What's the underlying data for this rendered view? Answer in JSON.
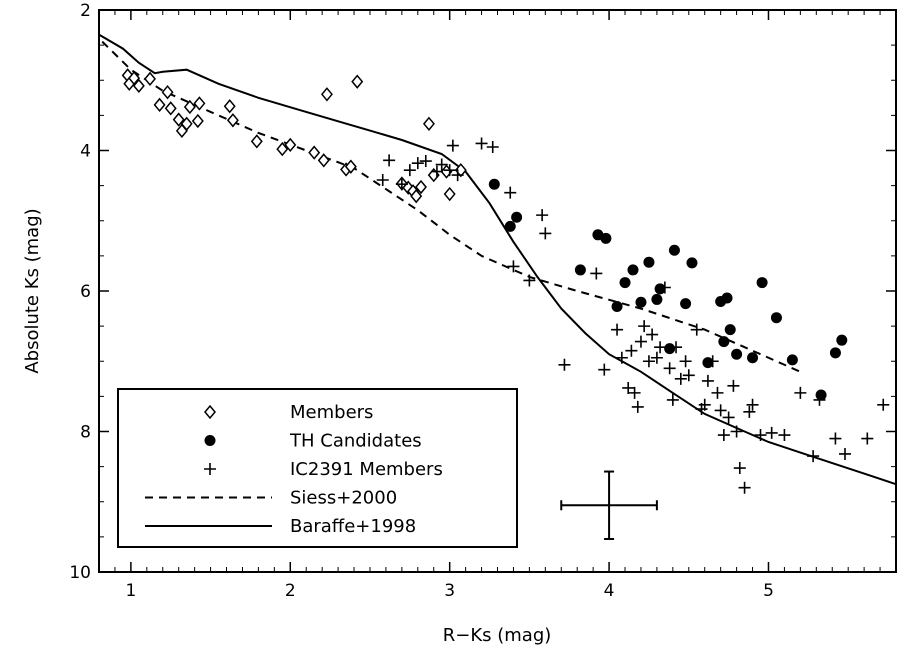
{
  "chart_data": {
    "type": "scatter",
    "title": "",
    "xlabel": "R−Ks (mag)",
    "ylabel": "Absolute Ks (mag)",
    "xlim": [
      0.8,
      5.8
    ],
    "ylim": [
      10,
      2
    ],
    "y_inverted": true,
    "xticks": [
      1,
      2,
      3,
      4,
      5
    ],
    "xtick_labels": [
      "1",
      "2",
      "3",
      "4",
      "5"
    ],
    "yticks": [
      2,
      4,
      6,
      8,
      10
    ],
    "ytick_labels": [
      "2",
      "4",
      "6",
      "8",
      "10"
    ],
    "grid": false,
    "legend_position": "bottom-left",
    "series": [
      {
        "name": "Members",
        "kind": "scatter",
        "marker": "open-diamond",
        "points": [
          [
            0.98,
            2.93
          ],
          [
            0.99,
            3.05
          ],
          [
            1.02,
            2.97
          ],
          [
            1.05,
            3.08
          ],
          [
            1.12,
            2.98
          ],
          [
            1.18,
            3.35
          ],
          [
            1.23,
            3.17
          ],
          [
            1.25,
            3.4
          ],
          [
            1.3,
            3.56
          ],
          [
            1.32,
            3.72
          ],
          [
            1.35,
            3.62
          ],
          [
            1.37,
            3.38
          ],
          [
            1.42,
            3.58
          ],
          [
            1.43,
            3.33
          ],
          [
            1.62,
            3.37
          ],
          [
            1.64,
            3.57
          ],
          [
            1.79,
            3.87
          ],
          [
            1.95,
            3.98
          ],
          [
            2.0,
            3.92
          ],
          [
            2.15,
            4.03
          ],
          [
            2.21,
            4.14
          ],
          [
            2.23,
            3.2
          ],
          [
            2.35,
            4.27
          ],
          [
            2.38,
            4.23
          ],
          [
            2.42,
            3.02
          ],
          [
            2.7,
            4.47
          ],
          [
            2.74,
            4.53
          ],
          [
            2.77,
            4.58
          ],
          [
            2.79,
            4.65
          ],
          [
            2.82,
            4.52
          ],
          [
            2.87,
            3.62
          ],
          [
            2.9,
            4.35
          ],
          [
            2.98,
            4.3
          ],
          [
            3.0,
            4.62
          ],
          [
            3.07,
            4.28
          ]
        ]
      },
      {
        "name": "TH Candidates",
        "kind": "scatter",
        "marker": "filled-circle",
        "points": [
          [
            3.28,
            4.48
          ],
          [
            3.38,
            5.08
          ],
          [
            3.42,
            4.95
          ],
          [
            3.82,
            5.7
          ],
          [
            3.93,
            5.2
          ],
          [
            3.98,
            5.25
          ],
          [
            4.05,
            6.22
          ],
          [
            4.1,
            5.88
          ],
          [
            4.15,
            5.7
          ],
          [
            4.2,
            6.16
          ],
          [
            4.25,
            5.59
          ],
          [
            4.3,
            6.12
          ],
          [
            4.32,
            5.97
          ],
          [
            4.38,
            6.82
          ],
          [
            4.41,
            5.42
          ],
          [
            4.48,
            6.18
          ],
          [
            4.52,
            5.6
          ],
          [
            4.62,
            7.02
          ],
          [
            4.7,
            6.15
          ],
          [
            4.72,
            6.72
          ],
          [
            4.74,
            6.1
          ],
          [
            4.76,
            6.55
          ],
          [
            4.8,
            6.9
          ],
          [
            4.9,
            6.95
          ],
          [
            4.96,
            5.88
          ],
          [
            5.05,
            6.38
          ],
          [
            5.15,
            6.98
          ],
          [
            5.33,
            7.48
          ],
          [
            5.42,
            6.88
          ],
          [
            5.46,
            6.7
          ]
        ]
      },
      {
        "name": "IC2391 Members",
        "kind": "scatter",
        "marker": "plus",
        "points": [
          [
            2.58,
            4.42
          ],
          [
            2.62,
            4.14
          ],
          [
            2.7,
            4.48
          ],
          [
            2.75,
            4.28
          ],
          [
            2.8,
            4.18
          ],
          [
            2.85,
            4.15
          ],
          [
            2.92,
            4.3
          ],
          [
            2.95,
            4.2
          ],
          [
            3.0,
            4.28
          ],
          [
            3.02,
            3.93
          ],
          [
            3.05,
            4.35
          ],
          [
            3.2,
            3.9
          ],
          [
            3.27,
            3.95
          ],
          [
            3.38,
            4.6
          ],
          [
            3.4,
            5.65
          ],
          [
            3.5,
            5.85
          ],
          [
            3.58,
            4.92
          ],
          [
            3.6,
            5.18
          ],
          [
            3.72,
            7.05
          ],
          [
            3.92,
            5.75
          ],
          [
            3.97,
            7.12
          ],
          [
            4.05,
            6.55
          ],
          [
            4.08,
            6.95
          ],
          [
            4.12,
            7.38
          ],
          [
            4.14,
            6.85
          ],
          [
            4.16,
            7.45
          ],
          [
            4.18,
            7.65
          ],
          [
            4.2,
            6.72
          ],
          [
            4.22,
            6.5
          ],
          [
            4.25,
            7.0
          ],
          [
            4.27,
            6.62
          ],
          [
            4.3,
            6.95
          ],
          [
            4.32,
            6.8
          ],
          [
            4.35,
            5.95
          ],
          [
            4.38,
            7.1
          ],
          [
            4.4,
            7.55
          ],
          [
            4.42,
            6.8
          ],
          [
            4.45,
            7.25
          ],
          [
            4.48,
            7.0
          ],
          [
            4.5,
            7.2
          ],
          [
            4.55,
            6.55
          ],
          [
            4.58,
            7.68
          ],
          [
            4.6,
            7.62
          ],
          [
            4.62,
            7.28
          ],
          [
            4.65,
            7.0
          ],
          [
            4.68,
            7.45
          ],
          [
            4.7,
            7.7
          ],
          [
            4.72,
            8.05
          ],
          [
            4.75,
            7.8
          ],
          [
            4.78,
            7.35
          ],
          [
            4.8,
            8.0
          ],
          [
            4.82,
            8.52
          ],
          [
            4.85,
            8.8
          ],
          [
            4.88,
            7.72
          ],
          [
            4.9,
            7.62
          ],
          [
            4.95,
            8.05
          ],
          [
            5.02,
            8.02
          ],
          [
            5.1,
            8.05
          ],
          [
            5.2,
            7.45
          ],
          [
            5.28,
            8.35
          ],
          [
            5.32,
            7.55
          ],
          [
            5.42,
            8.1
          ],
          [
            5.48,
            8.32
          ],
          [
            5.62,
            8.1
          ],
          [
            5.72,
            7.62
          ]
        ]
      },
      {
        "name": "Siess+2000",
        "kind": "line",
        "style": "dashed",
        "points": [
          [
            0.82,
            2.45
          ],
          [
            1.0,
            2.85
          ],
          [
            1.2,
            3.15
          ],
          [
            1.5,
            3.45
          ],
          [
            1.8,
            3.75
          ],
          [
            2.1,
            4.0
          ],
          [
            2.4,
            4.25
          ],
          [
            2.6,
            4.55
          ],
          [
            2.8,
            4.85
          ],
          [
            3.0,
            5.2
          ],
          [
            3.2,
            5.5
          ],
          [
            3.5,
            5.8
          ],
          [
            3.8,
            6.0
          ],
          [
            4.2,
            6.25
          ],
          [
            4.6,
            6.55
          ],
          [
            4.9,
            6.85
          ],
          [
            5.2,
            7.15
          ]
        ]
      },
      {
        "name": "Baraffe+1998",
        "kind": "line",
        "style": "solid",
        "points": [
          [
            0.8,
            2.35
          ],
          [
            0.95,
            2.55
          ],
          [
            1.05,
            2.75
          ],
          [
            1.15,
            2.9
          ],
          [
            1.2,
            2.88
          ],
          [
            1.35,
            2.85
          ],
          [
            1.55,
            3.05
          ],
          [
            1.8,
            3.25
          ],
          [
            2.1,
            3.45
          ],
          [
            2.4,
            3.65
          ],
          [
            2.7,
            3.85
          ],
          [
            2.95,
            4.05
          ],
          [
            3.1,
            4.3
          ],
          [
            3.25,
            4.75
          ],
          [
            3.4,
            5.3
          ],
          [
            3.55,
            5.8
          ],
          [
            3.7,
            6.25
          ],
          [
            3.85,
            6.6
          ],
          [
            4.0,
            6.9
          ],
          [
            4.2,
            7.15
          ],
          [
            4.4,
            7.45
          ],
          [
            4.6,
            7.75
          ],
          [
            4.8,
            7.95
          ],
          [
            5.0,
            8.15
          ],
          [
            5.2,
            8.3
          ],
          [
            5.4,
            8.45
          ],
          [
            5.6,
            8.6
          ],
          [
            5.8,
            8.75
          ]
        ]
      }
    ],
    "error_bar": {
      "x": 4.0,
      "y": 9.05,
      "xerr": 0.3,
      "yerr": 0.48
    },
    "legend": [
      {
        "label": "Members",
        "marker": "open-diamond"
      },
      {
        "label": "TH Candidates",
        "marker": "filled-circle"
      },
      {
        "label": "IC2391 Members",
        "marker": "plus"
      },
      {
        "label": "Siess+2000",
        "marker": "dashed-line"
      },
      {
        "label": "Baraffe+1998",
        "marker": "solid-line"
      }
    ],
    "colors": {
      "ink": "#000000",
      "background": "#ffffff"
    }
  }
}
